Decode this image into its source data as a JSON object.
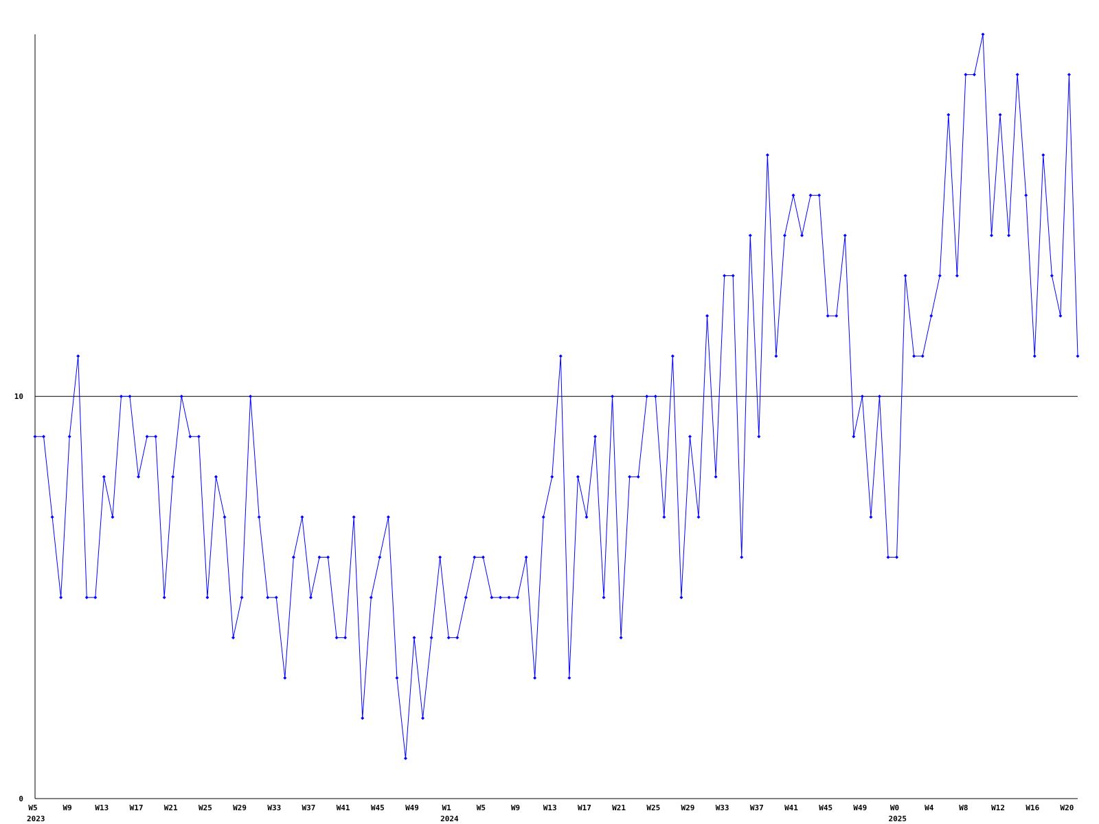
{
  "chart_data": {
    "type": "line",
    "categories": [
      "W5",
      null,
      null,
      null,
      "W9",
      null,
      null,
      null,
      "W13",
      null,
      null,
      null,
      "W17",
      null,
      null,
      null,
      "W21",
      null,
      null,
      null,
      "W25",
      null,
      null,
      null,
      "W29",
      null,
      null,
      null,
      "W33",
      null,
      null,
      null,
      "W37",
      null,
      null,
      null,
      "W41",
      null,
      null,
      null,
      "W45",
      null,
      null,
      null,
      "W49",
      null,
      null,
      null,
      "W1",
      null,
      null,
      null,
      "W5",
      null,
      null,
      null,
      "W9",
      null,
      null,
      null,
      "W13",
      null,
      null,
      null,
      "W17",
      null,
      null,
      null,
      "W21",
      null,
      null,
      null,
      "W25",
      null,
      null,
      null,
      "W29",
      null,
      null,
      null,
      "W33",
      null,
      null,
      null,
      "W37",
      null,
      null,
      null,
      "W41",
      null,
      null,
      null,
      "W45",
      null,
      null,
      null,
      "W49",
      null,
      null,
      null,
      "W0",
      null,
      null,
      null,
      "W4",
      null,
      null,
      null,
      "W8",
      null,
      null,
      null,
      "W12",
      null,
      null,
      null,
      "W16",
      null,
      null,
      null,
      "W20",
      null
    ],
    "category_years": [
      "2023",
      null,
      null,
      null,
      null,
      null,
      null,
      null,
      null,
      null,
      null,
      null,
      null,
      null,
      null,
      null,
      null,
      null,
      null,
      null,
      null,
      null,
      null,
      null,
      null,
      null,
      null,
      null,
      null,
      null,
      null,
      null,
      null,
      null,
      null,
      null,
      null,
      null,
      null,
      null,
      null,
      null,
      null,
      null,
      null,
      null,
      null,
      null,
      "2024",
      null,
      null,
      null,
      null,
      null,
      null,
      null,
      null,
      null,
      null,
      null,
      null,
      null,
      null,
      null,
      null,
      null,
      null,
      null,
      null,
      null,
      null,
      null,
      null,
      null,
      null,
      null,
      null,
      null,
      null,
      null,
      null,
      null,
      null,
      null,
      null,
      null,
      null,
      null,
      null,
      null,
      null,
      null,
      null,
      null,
      null,
      null,
      null,
      null,
      null,
      null,
      "2025",
      null,
      null,
      null,
      null,
      null,
      null,
      null,
      null,
      null,
      null,
      null,
      null,
      null,
      null,
      null,
      null,
      null,
      null,
      null,
      null,
      null
    ],
    "series": [
      {
        "color": "#0000ff",
        "values": [
          9,
          9,
          7,
          5,
          9,
          11,
          5,
          5,
          8,
          7,
          10,
          10,
          8,
          9,
          9,
          5,
          8,
          10,
          9,
          9,
          5,
          8,
          7,
          4,
          5,
          10,
          7,
          5,
          5,
          3,
          6,
          7,
          5,
          6,
          6,
          4,
          4,
          7,
          2,
          5,
          6,
          7,
          3,
          1,
          4,
          2,
          4,
          6,
          4,
          4,
          5,
          6,
          6,
          5,
          5,
          5,
          5,
          6,
          3,
          7,
          8,
          11,
          3,
          8,
          7,
          9,
          5,
          10,
          4,
          8,
          8,
          10,
          10,
          7,
          11,
          5,
          9,
          7,
          12,
          8,
          13,
          13,
          6,
          14,
          9,
          16,
          11,
          14,
          15,
          14,
          15,
          15,
          12,
          12,
          14,
          9,
          10,
          7,
          10,
          6,
          6,
          13,
          11,
          11,
          12,
          13,
          17,
          13,
          18,
          18,
          19,
          14,
          17,
          14,
          18,
          15,
          11,
          16,
          13,
          12,
          18,
          11
        ]
      }
    ],
    "ylim": [
      0,
      19
    ],
    "yticks": [
      0,
      10
    ],
    "grid": true
  }
}
